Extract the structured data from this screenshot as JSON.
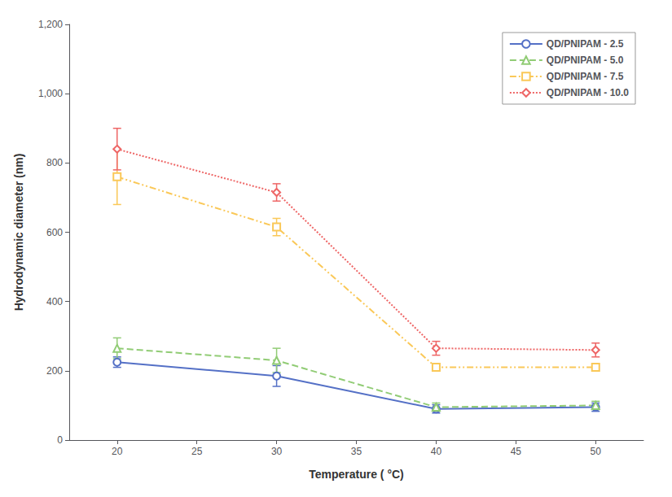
{
  "chart_data": {
    "type": "line",
    "x_label": "Temperature ( °C)",
    "y_label": "Hydrodynamic diameter (nm)",
    "x": [
      20,
      30,
      40,
      50
    ],
    "series": [
      {
        "name": "QD/PNIPAM - 2.5",
        "values": [
          225,
          185,
          90,
          95
        ],
        "yerr": [
          15,
          30,
          12,
          12
        ],
        "marker": "circle",
        "line_style": "solid"
      },
      {
        "name": "QD/PNIPAM - 5.0",
        "values": [
          265,
          230,
          95,
          100
        ],
        "yerr": [
          30,
          35,
          12,
          12
        ],
        "marker": "triangle",
        "line_style": "dashed"
      },
      {
        "name": "QD/PNIPAM - 7.5",
        "values": [
          760,
          615,
          210,
          210
        ],
        "yerr": [
          80,
          25,
          10,
          10
        ],
        "marker": "square",
        "line_style": "dashdot"
      },
      {
        "name": "QD/PNIPAM - 10.0",
        "values": [
          840,
          715,
          265,
          260
        ],
        "yerr": [
          60,
          25,
          20,
          20
        ],
        "marker": "diamond",
        "line_style": "dotted"
      }
    ],
    "xlim": [
      17,
      53
    ],
    "ylim": [
      0,
      1200
    ],
    "xticks": [
      20,
      25,
      30,
      35,
      40,
      45,
      50
    ],
    "yticks": [
      0,
      200,
      400,
      600,
      800,
      1000,
      1200
    ],
    "legend": "upper right",
    "grid": false
  }
}
